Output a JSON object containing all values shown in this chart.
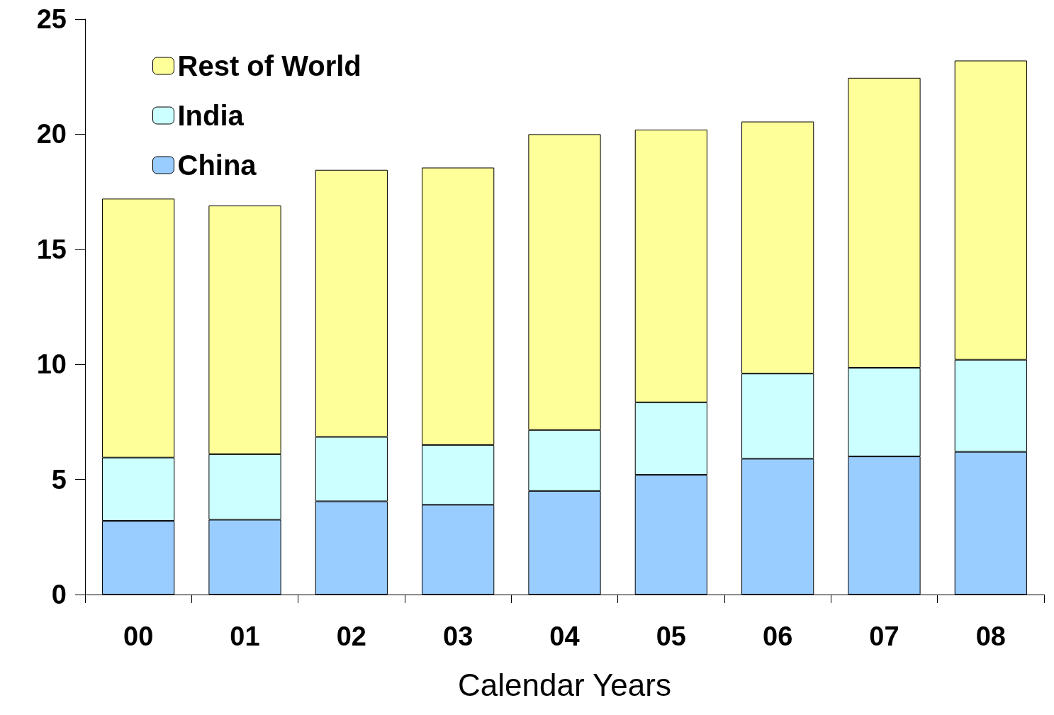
{
  "chart_data": {
    "type": "bar",
    "xlabel": "Calendar Years",
    "categories": [
      "00",
      "01",
      "02",
      "03",
      "04",
      "05",
      "06",
      "07",
      "08"
    ],
    "series": [
      {
        "name": "China",
        "color": "#99ccff",
        "values": [
          3.2,
          3.25,
          4.05,
          3.9,
          4.5,
          5.2,
          5.9,
          6.0,
          6.2
        ]
      },
      {
        "name": "India",
        "color": "#ccffff",
        "values": [
          2.75,
          2.85,
          2.8,
          2.6,
          2.65,
          3.15,
          3.7,
          3.85,
          4.0
        ]
      },
      {
        "name": "Rest of World",
        "color": "#ffff99",
        "values": [
          11.25,
          10.8,
          11.6,
          12.05,
          12.85,
          11.85,
          10.95,
          12.6,
          13.0
        ]
      }
    ],
    "stacked": true,
    "ylim": [
      0,
      25
    ],
    "yticks": [
      0,
      5,
      10,
      15,
      20,
      25
    ],
    "grid": false,
    "legend": "top left"
  }
}
